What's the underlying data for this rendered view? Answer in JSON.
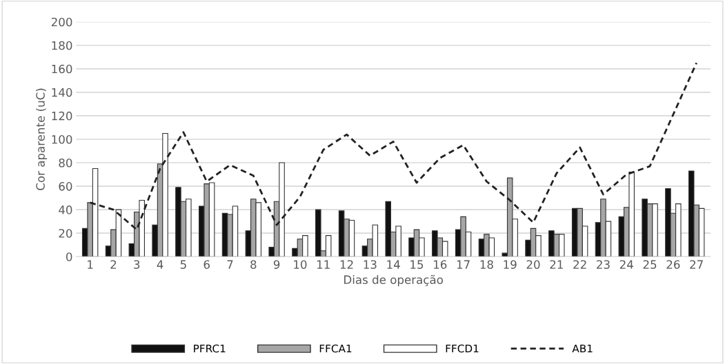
{
  "chart_data": {
    "type": "bar",
    "xlabel": "Dias de operação",
    "ylabel": "Cor aparente (uC)",
    "categories": [
      "1",
      "2",
      "3",
      "4",
      "5",
      "6",
      "7",
      "8",
      "9",
      "10",
      "11",
      "12",
      "13",
      "14",
      "15",
      "16",
      "17",
      "18",
      "19",
      "20",
      "21",
      "22",
      "23",
      "24",
      "25",
      "26",
      "27"
    ],
    "series": [
      {
        "name": "PFRC1",
        "color": "#111111",
        "values": [
          24,
          9,
          11,
          27,
          59,
          43,
          37,
          22,
          8,
          7,
          40,
          39,
          9,
          47,
          16,
          22,
          23,
          15,
          3,
          14,
          22,
          41,
          29,
          34,
          49,
          58,
          73
        ]
      },
      {
        "name": "FFCA1",
        "color": "#a6a6a6",
        "values": [
          46,
          23,
          38,
          79,
          47,
          62,
          36,
          49,
          47,
          15,
          5,
          32,
          15,
          21,
          23,
          16,
          34,
          19,
          67,
          24,
          19,
          41,
          49,
          42,
          45,
          37,
          44
        ]
      },
      {
        "name": "FFCD1",
        "color": "#ffffff",
        "values": [
          75,
          40,
          48,
          105,
          49,
          63,
          43,
          46,
          80,
          18,
          18,
          31,
          27,
          26,
          16,
          13,
          21,
          16,
          32,
          18,
          19,
          26,
          30,
          72,
          45,
          45,
          41
        ]
      },
      {
        "name": "AB1",
        "type": "line",
        "color": "#222222",
        "line_style": "dashed",
        "values": [
          46,
          40,
          23,
          75,
          106,
          64,
          78,
          69,
          27,
          51,
          91,
          104,
          86,
          98,
          63,
          84,
          95,
          64,
          48,
          29,
          71,
          93,
          53,
          70,
          77,
          121,
          165
        ]
      }
    ],
    "ylim": [
      0,
      200
    ],
    "yticks": [
      0,
      20,
      40,
      60,
      80,
      100,
      120,
      140,
      160,
      180,
      200
    ],
    "grid": "y",
    "legend": "bottom"
  }
}
